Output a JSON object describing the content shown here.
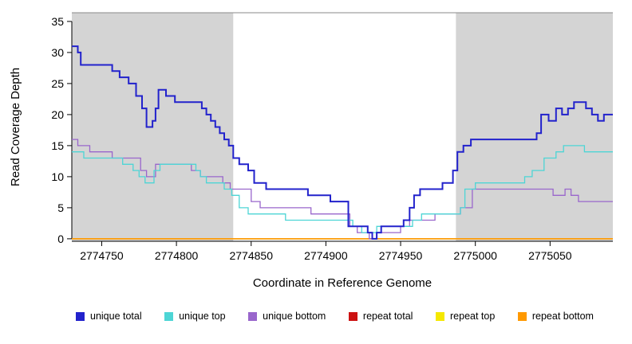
{
  "chart_data": {
    "type": "line",
    "title": "",
    "xlabel": "Coordinate in Reference Genome",
    "ylabel": "Read Coverage Depth",
    "xlim": [
      2774730,
      2775092
    ],
    "ylim": [
      -0.4,
      36.4
    ],
    "xticks": [
      2774750,
      2774800,
      2774850,
      2774900,
      2774950,
      2775000,
      2775050
    ],
    "yticks": [
      0,
      5,
      10,
      15,
      20,
      25,
      30,
      35
    ],
    "grid": false,
    "background_color": "#ffffff",
    "masked_region_color": "#d4d4d4",
    "shaded_regions": [
      {
        "x0": 2774730,
        "x1": 2774838
      },
      {
        "x0": 2774987,
        "x1": 2775092
      }
    ],
    "legend_position": "bottom",
    "legend": [
      {
        "label": "unique total",
        "color": "#2222cc"
      },
      {
        "label": "unique top",
        "color": "#4dd5d5"
      },
      {
        "label": "unique bottom",
        "color": "#9966cc"
      },
      {
        "label": "repeat total",
        "color": "#cc1111"
      },
      {
        "label": "repeat top",
        "color": "#f5e800"
      },
      {
        "label": "repeat bottom",
        "color": "#ff9900"
      }
    ],
    "series": [
      {
        "name": "unique total",
        "color": "#2222cc",
        "z": 6,
        "width": 2,
        "points": [
          [
            2774730,
            31
          ],
          [
            2774734,
            30
          ],
          [
            2774736,
            28
          ],
          [
            2774757,
            27
          ],
          [
            2774762,
            26
          ],
          [
            2774768,
            25
          ],
          [
            2774773,
            23
          ],
          [
            2774777,
            21
          ],
          [
            2774780,
            18
          ],
          [
            2774784,
            19
          ],
          [
            2774786,
            21
          ],
          [
            2774788,
            24
          ],
          [
            2774793,
            23
          ],
          [
            2774799,
            22
          ],
          [
            2774817,
            21
          ],
          [
            2774820,
            20
          ],
          [
            2774823,
            19
          ],
          [
            2774826,
            18
          ],
          [
            2774829,
            17
          ],
          [
            2774832,
            16
          ],
          [
            2774835,
            15
          ],
          [
            2774838,
            13
          ],
          [
            2774842,
            12
          ],
          [
            2774848,
            11
          ],
          [
            2774852,
            9
          ],
          [
            2774860,
            8
          ],
          [
            2774888,
            7
          ],
          [
            2774903,
            6
          ],
          [
            2774915,
            2
          ],
          [
            2774928,
            1
          ],
          [
            2774931,
            0
          ],
          [
            2774934,
            1
          ],
          [
            2774937,
            2
          ],
          [
            2774952,
            3
          ],
          [
            2774956,
            5
          ],
          [
            2774959,
            7
          ],
          [
            2774963,
            8
          ],
          [
            2774978,
            9
          ],
          [
            2774985,
            11
          ],
          [
            2774988,
            14
          ],
          [
            2774992,
            15
          ],
          [
            2774997,
            16
          ],
          [
            2775041,
            17
          ],
          [
            2775044,
            20
          ],
          [
            2775049,
            19
          ],
          [
            2775054,
            21
          ],
          [
            2775058,
            20
          ],
          [
            2775062,
            21
          ],
          [
            2775066,
            22
          ],
          [
            2775074,
            21
          ],
          [
            2775078,
            20
          ],
          [
            2775082,
            19
          ],
          [
            2775086,
            20
          ]
        ]
      },
      {
        "name": "unique top",
        "color": "#4dd5d5",
        "z": 5,
        "width": 1.3,
        "points": [
          [
            2774730,
            14
          ],
          [
            2774738,
            13
          ],
          [
            2774764,
            12
          ],
          [
            2774771,
            11
          ],
          [
            2774775,
            10
          ],
          [
            2774779,
            9
          ],
          [
            2774785,
            11
          ],
          [
            2774789,
            12
          ],
          [
            2774813,
            11
          ],
          [
            2774816,
            10
          ],
          [
            2774820,
            9
          ],
          [
            2774832,
            8
          ],
          [
            2774837,
            7
          ],
          [
            2774842,
            5
          ],
          [
            2774848,
            4
          ],
          [
            2774873,
            3
          ],
          [
            2774918,
            2
          ],
          [
            2774924,
            1
          ],
          [
            2774934,
            2
          ],
          [
            2774958,
            3
          ],
          [
            2774964,
            4
          ],
          [
            2774990,
            5
          ],
          [
            2774993,
            8
          ],
          [
            2775000,
            9
          ],
          [
            2775033,
            10
          ],
          [
            2775038,
            11
          ],
          [
            2775046,
            13
          ],
          [
            2775054,
            14
          ],
          [
            2775059,
            15
          ],
          [
            2775073,
            14
          ]
        ]
      },
      {
        "name": "unique bottom",
        "color": "#9966cc",
        "z": 4,
        "width": 1.3,
        "points": [
          [
            2774730,
            16
          ],
          [
            2774734,
            15
          ],
          [
            2774742,
            14
          ],
          [
            2774757,
            13
          ],
          [
            2774776,
            11
          ],
          [
            2774780,
            10
          ],
          [
            2774786,
            12
          ],
          [
            2774810,
            11
          ],
          [
            2774816,
            10
          ],
          [
            2774831,
            9
          ],
          [
            2774836,
            8
          ],
          [
            2774850,
            6
          ],
          [
            2774856,
            5
          ],
          [
            2774890,
            4
          ],
          [
            2774916,
            2
          ],
          [
            2774921,
            1
          ],
          [
            2774929,
            0
          ],
          [
            2774934,
            1
          ],
          [
            2774950,
            2
          ],
          [
            2774956,
            3
          ],
          [
            2774973,
            4
          ],
          [
            2774990,
            5
          ],
          [
            2774998,
            8
          ],
          [
            2775052,
            7
          ],
          [
            2775060,
            8
          ],
          [
            2775064,
            7
          ],
          [
            2775069,
            6
          ]
        ]
      },
      {
        "name": "repeat total",
        "color": "#cc1111",
        "z": 1,
        "width": 1.3,
        "points": [
          [
            2774730,
            0
          ]
        ]
      },
      {
        "name": "repeat top",
        "color": "#f5e800",
        "z": 2,
        "width": 1.3,
        "points": [
          [
            2774730,
            0
          ]
        ]
      },
      {
        "name": "repeat bottom",
        "color": "#ff9900",
        "z": 3,
        "width": 1.6,
        "points": [
          [
            2774730,
            0
          ]
        ]
      }
    ]
  }
}
